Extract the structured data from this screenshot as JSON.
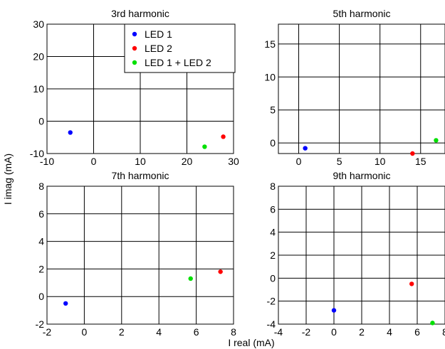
{
  "figure": {
    "xlabel": "I real (mA)",
    "ylabel": "I imag (mA)"
  },
  "colors": {
    "LED 1": "#0000ff",
    "LED 2": "#ff0000",
    "LED 1 + LED 2": "#00e000"
  },
  "chart_data": [
    {
      "type": "scatter",
      "title": "3rd harmonic",
      "xlim": [
        -10,
        30
      ],
      "ylim": [
        -10,
        30
      ],
      "xticks": [
        -10,
        0,
        10,
        20,
        30
      ],
      "yticks": [
        -10,
        0,
        10,
        20,
        30
      ],
      "grid": true,
      "legend": {
        "placement": "top-right",
        "entries": [
          "LED 1",
          "LED 2",
          "LED 1 + LED 2"
        ]
      },
      "series": [
        {
          "name": "LED 1",
          "x": [
            -5
          ],
          "y": [
            -3.5
          ]
        },
        {
          "name": "LED 2",
          "x": [
            27.8
          ],
          "y": [
            -4.8
          ]
        },
        {
          "name": "LED 1 + LED 2",
          "x": [
            23.8
          ],
          "y": [
            -7.9
          ]
        }
      ]
    },
    {
      "type": "scatter",
      "title": "5th harmonic",
      "xlim": [
        -2.5,
        18
      ],
      "ylim": [
        -1.6,
        18
      ],
      "xticks": [
        0,
        5,
        10,
        15
      ],
      "yticks": [
        0,
        5,
        10,
        15
      ],
      "grid": true,
      "series": [
        {
          "name": "LED 1",
          "x": [
            0.8
          ],
          "y": [
            -0.8
          ]
        },
        {
          "name": "LED 2",
          "x": [
            14
          ],
          "y": [
            -1.6
          ]
        },
        {
          "name": "LED 1 + LED 2",
          "x": [
            16.9
          ],
          "y": [
            0.4
          ]
        }
      ]
    },
    {
      "type": "scatter",
      "title": "7th harmonic",
      "xlim": [
        -2,
        8
      ],
      "ylim": [
        -2,
        8
      ],
      "xticks": [
        -2,
        0,
        2,
        4,
        6,
        8
      ],
      "yticks": [
        -2,
        0,
        2,
        4,
        6,
        8
      ],
      "grid": true,
      "series": [
        {
          "name": "LED 1",
          "x": [
            -1
          ],
          "y": [
            -0.5
          ]
        },
        {
          "name": "LED 2",
          "x": [
            7.3
          ],
          "y": [
            1.8
          ]
        },
        {
          "name": "LED 1 + LED 2",
          "x": [
            5.7
          ],
          "y": [
            1.3
          ]
        }
      ]
    },
    {
      "type": "scatter",
      "title": "9th harmonic",
      "xlim": [
        -4,
        8
      ],
      "ylim": [
        -4,
        8
      ],
      "xticks": [
        -4,
        -2,
        0,
        2,
        4,
        6,
        8
      ],
      "yticks": [
        -4,
        -2,
        0,
        2,
        4,
        6,
        8
      ],
      "grid": true,
      "series": [
        {
          "name": "LED 1",
          "x": [
            0
          ],
          "y": [
            -2.8
          ]
        },
        {
          "name": "LED 2",
          "x": [
            5.6
          ],
          "y": [
            -0.5
          ]
        },
        {
          "name": "LED 1 + LED 2",
          "x": [
            7.1
          ],
          "y": [
            -3.9
          ]
        }
      ]
    }
  ]
}
